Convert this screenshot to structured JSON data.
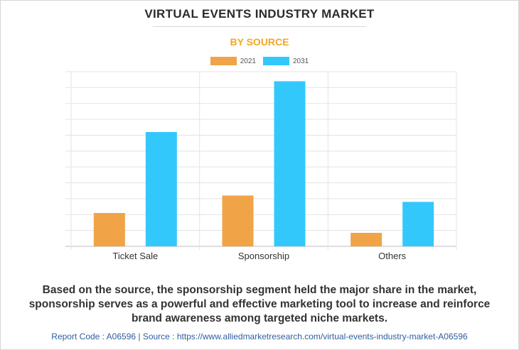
{
  "header": {
    "title": "VIRTUAL EVENTS INDUSTRY MARKET",
    "subtitle": "BY SOURCE"
  },
  "legend": [
    {
      "label": "2021",
      "color": "#f0a347"
    },
    {
      "label": "2031",
      "color": "#33c8fc"
    }
  ],
  "chart_data": {
    "type": "bar",
    "categories": [
      "Ticket Sale",
      "Sponsorship",
      "Others"
    ],
    "series": [
      {
        "name": "2021",
        "values": [
          2.1,
          3.2,
          0.85
        ],
        "color": "#f0a347"
      },
      {
        "name": "2031",
        "values": [
          7.2,
          10.4,
          2.8
        ],
        "color": "#33c8fc"
      }
    ],
    "ylim": [
      0,
      11
    ],
    "y_gridlines": 11,
    "grid": true,
    "legend_position": "top-center"
  },
  "description": "Based on the source, the sponsorship segment held the major share in the market, sponsorship serves as a powerful and effective marketing tool to increase and reinforce brand awareness among targeted niche markets.",
  "footer": "Report Code : A06596  |  Source : https://www.alliedmarketresearch.com/virtual-events-industry-market-A06596"
}
